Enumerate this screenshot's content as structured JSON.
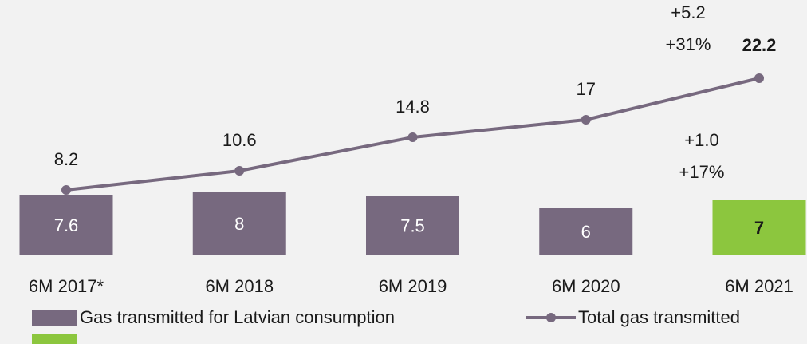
{
  "chart_data": {
    "type": "bar_line",
    "categories": [
      "6M 2017*",
      "6M 2018",
      "6M 2019",
      "6M 2020",
      "6M 2021"
    ],
    "series": [
      {
        "name": "Gas transmitted for Latvian consumption",
        "type": "bar",
        "color": "#77697f",
        "values": [
          7.6,
          8.0,
          7.5,
          6.0,
          null
        ]
      },
      {
        "type": "bar",
        "color": "#8cc63e",
        "values": [
          null,
          null,
          null,
          null,
          7.0
        ]
      },
      {
        "name": "Total gas transmitted",
        "type": "line",
        "color": "#77697f",
        "values": [
          8.2,
          10.6,
          14.8,
          17.0,
          22.2
        ]
      }
    ],
    "annotations": [
      "+5.2",
      "+31%",
      "+1.0",
      "+17%"
    ]
  }
}
